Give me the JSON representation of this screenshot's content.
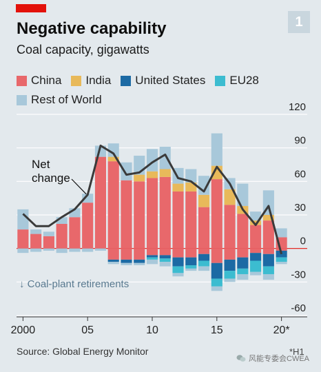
{
  "header": {
    "badge": "1",
    "title": "Negative capability",
    "subtitle": "Coal capacity, gigawatts"
  },
  "colors": {
    "accent": "#e3120b",
    "China": "#e8686b",
    "India": "#e8b95a",
    "United States": "#1c6aa4",
    "EU28": "#3cbcd0",
    "Rest of World": "#a8c8da",
    "net_line": "#3a3a3a",
    "grid": "#ffffff",
    "zero_line": "#e3120b"
  },
  "chart_data": {
    "type": "bar",
    "stacked": true,
    "x": [
      2000,
      2001,
      2002,
      2003,
      2004,
      2005,
      2006,
      2007,
      2008,
      2009,
      2010,
      2011,
      2012,
      2013,
      2014,
      2015,
      2016,
      2017,
      2018,
      2019,
      2020
    ],
    "positive_series": [
      {
        "name": "China",
        "values": [
          17,
          13,
          11,
          22,
          28,
          41,
          82,
          78,
          61,
          60,
          63,
          64,
          51,
          51,
          37,
          62,
          39,
          31,
          21,
          25,
          10
        ]
      },
      {
        "name": "India",
        "values": [
          0,
          0,
          0,
          0,
          0,
          0,
          0,
          4,
          0,
          6,
          6,
          7,
          7,
          8,
          11,
          12,
          14,
          7,
          4,
          5,
          0
        ]
      },
      {
        "name": "United States",
        "values": [
          0,
          0,
          0,
          0,
          0,
          0,
          0,
          0,
          0,
          0,
          0,
          0,
          0,
          0,
          0,
          0,
          0,
          0,
          0,
          0,
          0
        ]
      },
      {
        "name": "EU28",
        "values": [
          0,
          0,
          0,
          0,
          0,
          0,
          0,
          0,
          0,
          0,
          0,
          0,
          0,
          0,
          0,
          0,
          0,
          0,
          0,
          0,
          0
        ]
      },
      {
        "name": "Rest of World",
        "values": [
          18,
          4,
          4,
          6,
          8,
          8,
          10,
          12,
          16,
          17,
          20,
          20,
          14,
          12,
          17,
          29,
          10,
          20,
          8,
          22,
          8
        ]
      }
    ],
    "negative_series": [
      {
        "name": "China",
        "values": [
          0,
          0,
          0,
          0,
          0,
          0,
          0,
          -10,
          -10,
          -10,
          -6,
          -6,
          -8,
          -8,
          -5,
          -13,
          -10,
          -8,
          -4,
          -5,
          -2
        ]
      },
      {
        "name": "India",
        "values": [
          0,
          0,
          0,
          0,
          0,
          0,
          0,
          0,
          0,
          0,
          0,
          0,
          0,
          0,
          0,
          0,
          0,
          0,
          0,
          0,
          0
        ]
      },
      {
        "name": "United States",
        "values": [
          0,
          0,
          0,
          0,
          0,
          0,
          0,
          -2,
          -3,
          -3,
          -2,
          -3,
          -8,
          -7,
          -6,
          -14,
          -10,
          -10,
          -7,
          -11,
          -6
        ]
      },
      {
        "name": "EU28",
        "values": [
          0,
          0,
          0,
          0,
          0,
          0,
          0,
          0,
          0,
          0,
          -2,
          -3,
          -6,
          -3,
          -5,
          -7,
          -7,
          -5,
          -10,
          -7,
          -4
        ]
      },
      {
        "name": "Rest of World",
        "values": [
          -4,
          -3,
          -2,
          -4,
          -3,
          -3,
          -2,
          -2,
          -2,
          -2,
          -4,
          -4,
          -3,
          -2,
          -4,
          -4,
          -3,
          -5,
          -3,
          -5,
          -2
        ]
      }
    ],
    "net_change": {
      "name": "Net change",
      "values": [
        31,
        20,
        20,
        28,
        35,
        48,
        92,
        85,
        66,
        68,
        77,
        84,
        63,
        60,
        51,
        73,
        58,
        35,
        21,
        38,
        -5
      ]
    },
    "ylim": [
      -60,
      120
    ],
    "yticks": [
      120,
      90,
      60,
      30,
      0,
      -30,
      -60
    ],
    "xtick_labels": [
      {
        "x": 2000,
        "label": "2000"
      },
      {
        "x": 2005,
        "label": "05"
      },
      {
        "x": 2010,
        "label": "10"
      },
      {
        "x": 2015,
        "label": "15"
      },
      {
        "x": 2020,
        "label": "20*"
      }
    ],
    "annotations": {
      "net_label": [
        "Net",
        "change"
      ],
      "retirements": "↓ Coal-plant retirements"
    },
    "legend": [
      "China",
      "India",
      "United States",
      "EU28",
      "Rest of World"
    ],
    "legend_position": "top",
    "grid": true
  },
  "footer": {
    "source": "Source: Global Energy Monitor",
    "footnote": "*H1",
    "watermark": "风能专委会CWEA"
  }
}
